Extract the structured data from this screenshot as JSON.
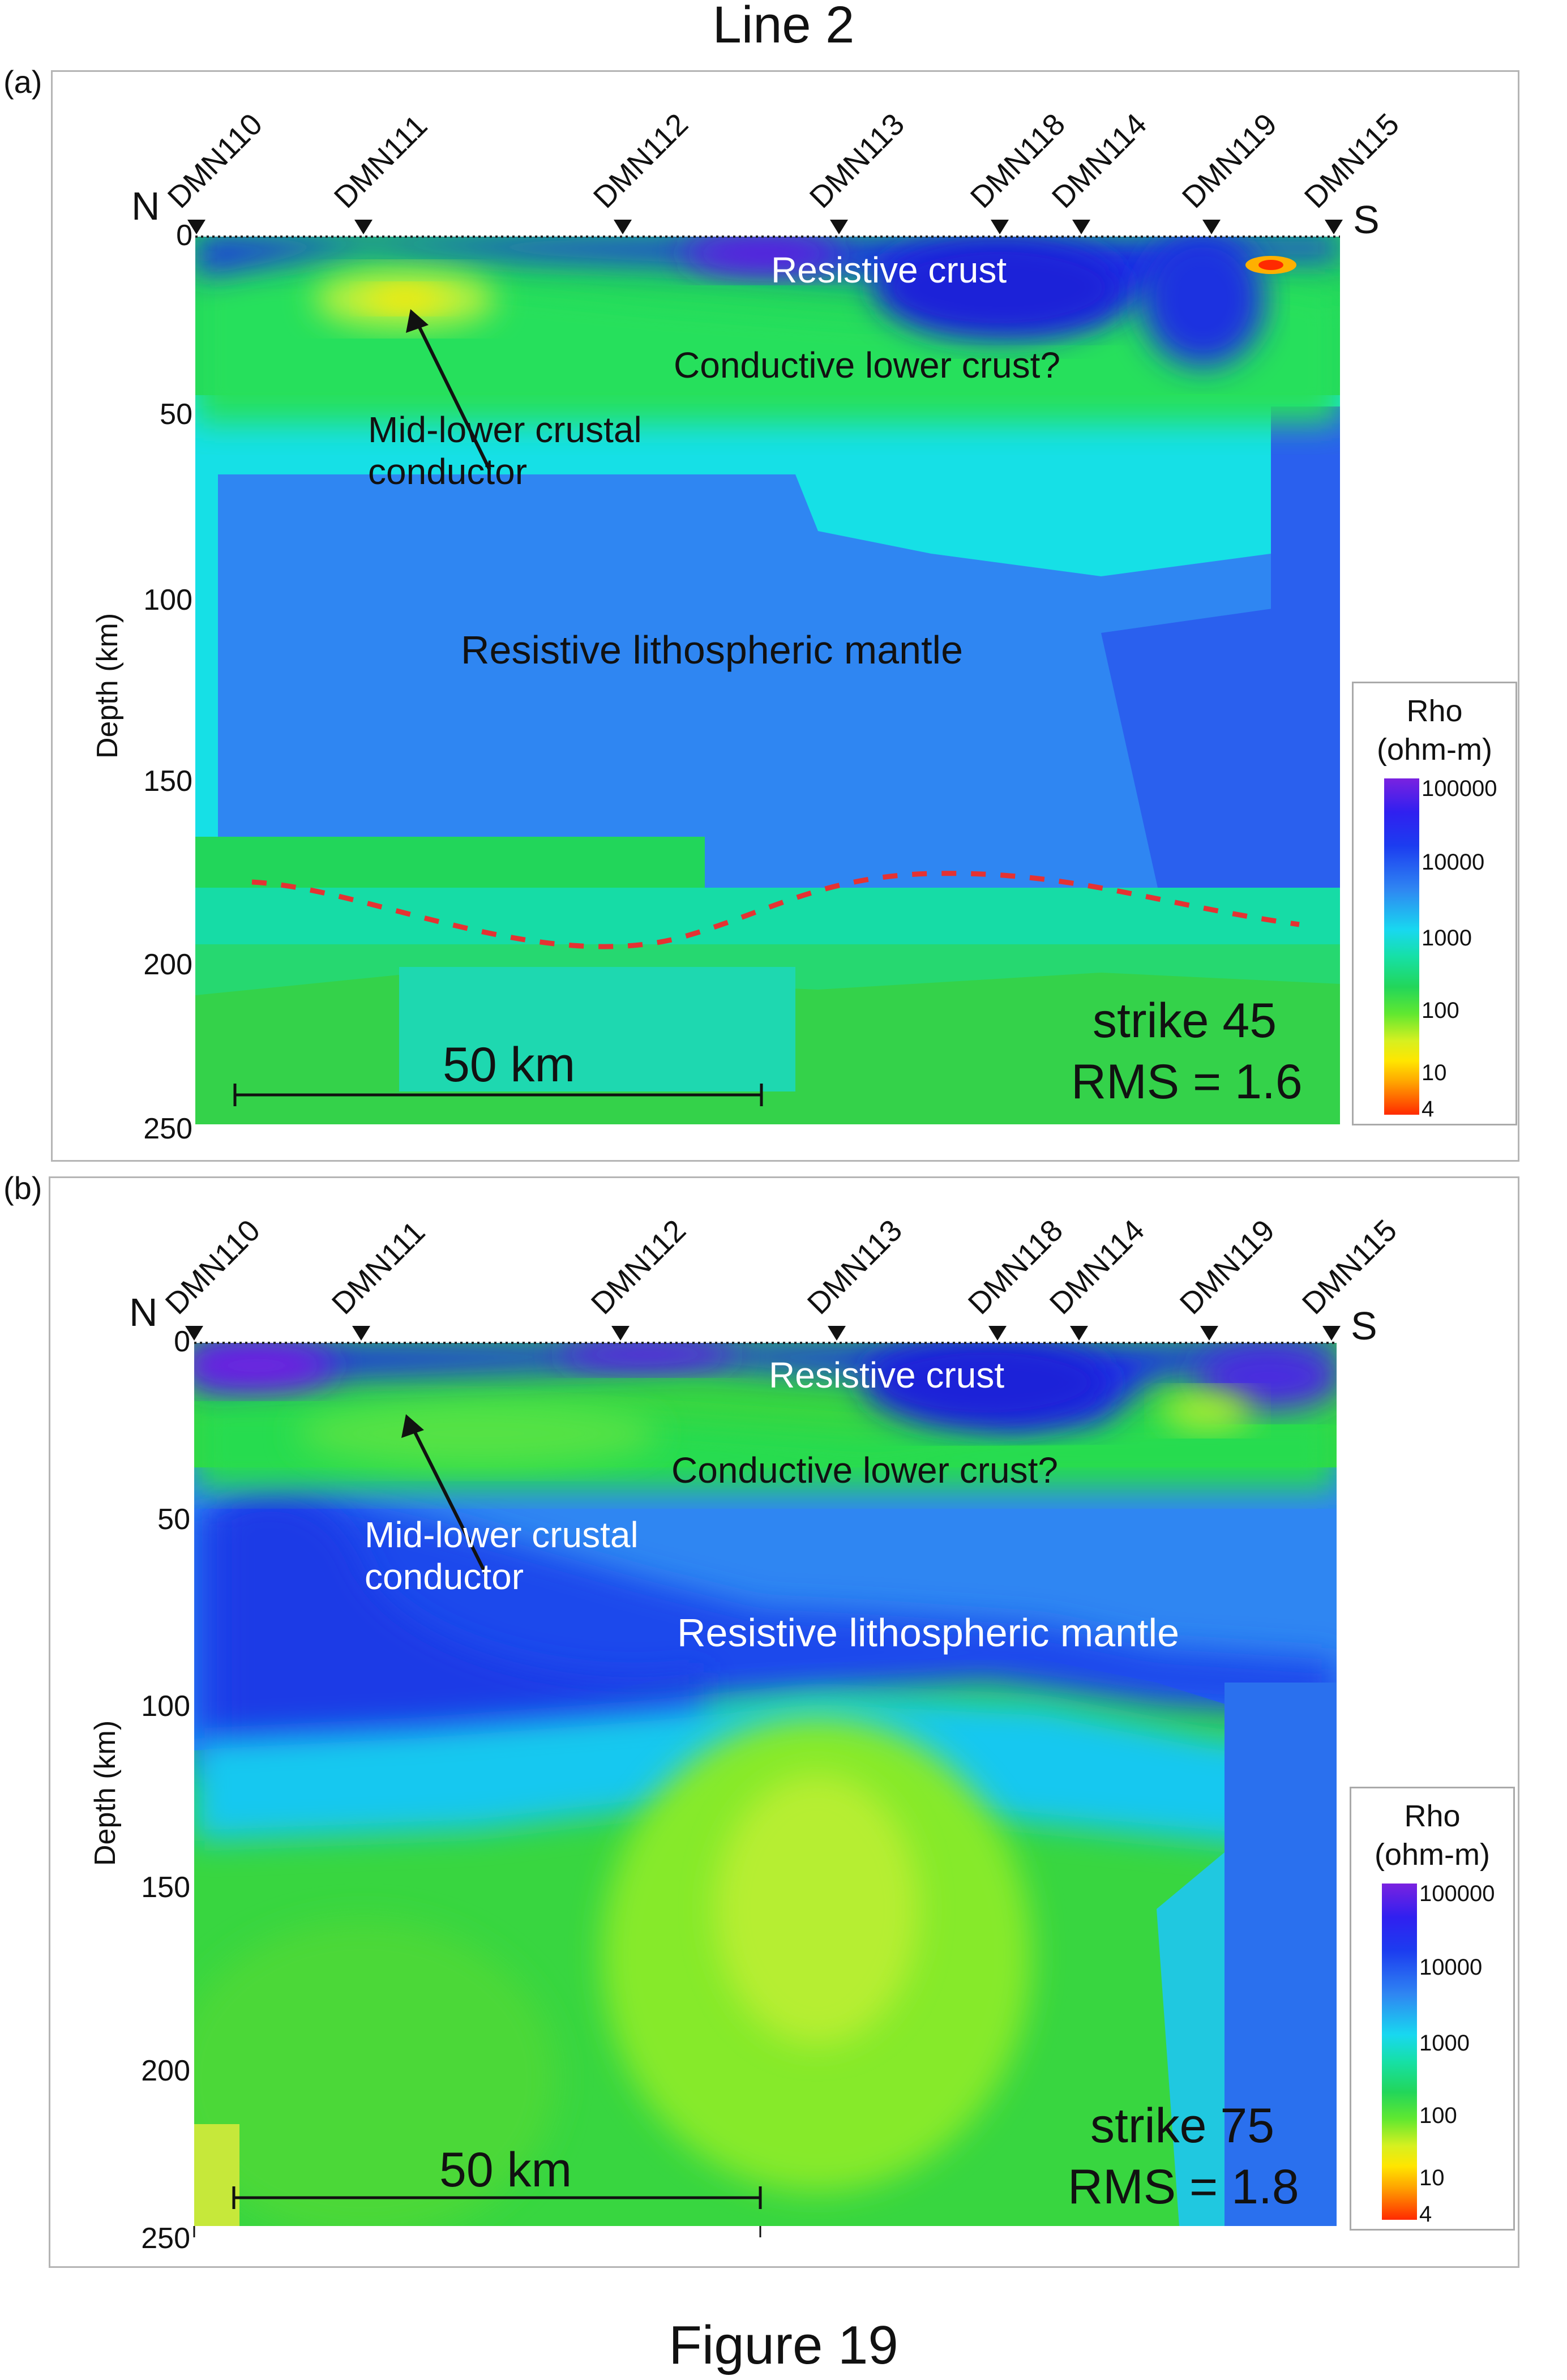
{
  "figure_title": "Line 2",
  "caption": "Figure 19",
  "stations": [
    "DMN110",
    "DMN111",
    "DMN112",
    "DMN113",
    "DMN118",
    "DMN114",
    "DMN119",
    "DMN115"
  ],
  "direction": {
    "north": "N",
    "south": "S"
  },
  "axis": {
    "ylabel": "Depth (km)",
    "yticks": [
      "0",
      "50",
      "100",
      "150",
      "200",
      "250"
    ]
  },
  "legend": {
    "title_line1": "Rho",
    "title_line2": "(ohm-m)",
    "ticks": [
      "100000",
      "10000",
      "1000",
      "100",
      "10",
      "4"
    ]
  },
  "panels": [
    {
      "label": "(a)",
      "annotations": {
        "resistive_crust": "Resistive crust",
        "conductive_lower_crust": "Conductive lower crust?",
        "midlower_line1": "Mid-lower crustal",
        "midlower_line2": "conductor",
        "mantle": "Resistive lithospheric mantle",
        "scale": "50 km",
        "strike": "strike 45",
        "rms": "RMS = 1.6"
      }
    },
    {
      "label": "(b)",
      "annotations": {
        "resistive_crust": "Resistive crust",
        "conductive_lower_crust": "Conductive lower crust?",
        "midlower_line1": "Mid-lower crustal",
        "midlower_line2": "conductor",
        "mantle": "Resistive lithospheric mantle",
        "scale": "50 km",
        "strike": "strike 75",
        "rms": "RMS = 1.8"
      }
    }
  ],
  "colors": {
    "very_resistive": "#7a22e0",
    "resistive": "#1c3cf0",
    "moderate": "#2f86f2",
    "cyan": "#18d8f0",
    "green": "#22d65a",
    "yellow_green": "#8ef23a",
    "conductive": "#ffe600",
    "very_conductive": "#ff2a00",
    "lab_line": "#e53232"
  }
}
